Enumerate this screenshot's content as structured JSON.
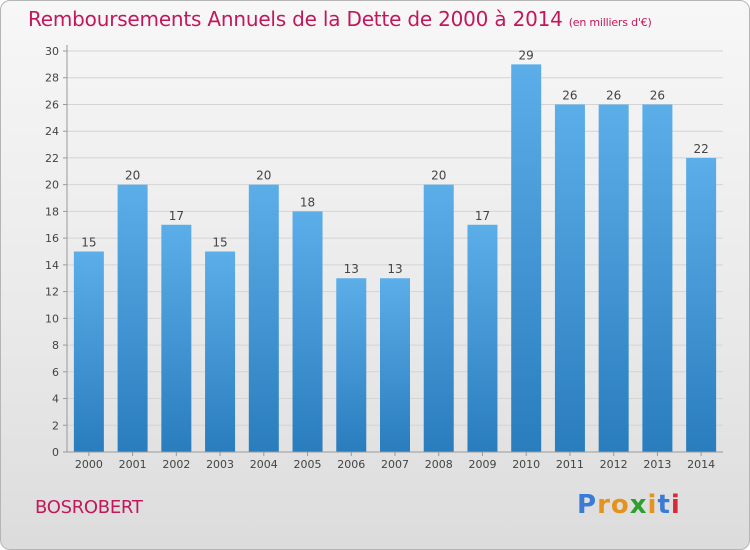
{
  "title": "Remboursements Annuels de la Dette de 2000 à 2014",
  "unit": "(en milliers d'€)",
  "commune": "BOSROBERT",
  "logo": {
    "text": "Proxiti",
    "letters": [
      "P",
      "r",
      "o",
      "x",
      "i",
      "t",
      "i"
    ],
    "colors": [
      "#3a7bd5",
      "#e6931e",
      "#e6931e",
      "#2e9e2e",
      "#e6931e",
      "#3a7bd5",
      "#d62a3c"
    ]
  },
  "colors": {
    "bar_light": "#5caee9",
    "bar_dark": "#2a7dbd",
    "title": "#c2185b"
  },
  "chart_data": {
    "type": "bar",
    "title": "Remboursements Annuels de la Dette de 2000 à 2014",
    "xlabel": "",
    "ylabel": "",
    "ylim": [
      0,
      30
    ],
    "yticks": [
      0,
      2,
      4,
      6,
      8,
      10,
      12,
      14,
      16,
      18,
      20,
      22,
      24,
      26,
      28,
      30
    ],
    "grid": true,
    "categories": [
      "2000",
      "2001",
      "2002",
      "2003",
      "2004",
      "2005",
      "2006",
      "2007",
      "2008",
      "2009",
      "2010",
      "2011",
      "2012",
      "2013",
      "2014"
    ],
    "values": [
      15,
      20,
      17,
      15,
      20,
      18,
      13,
      13,
      20,
      17,
      29,
      26,
      26,
      26,
      22
    ]
  }
}
